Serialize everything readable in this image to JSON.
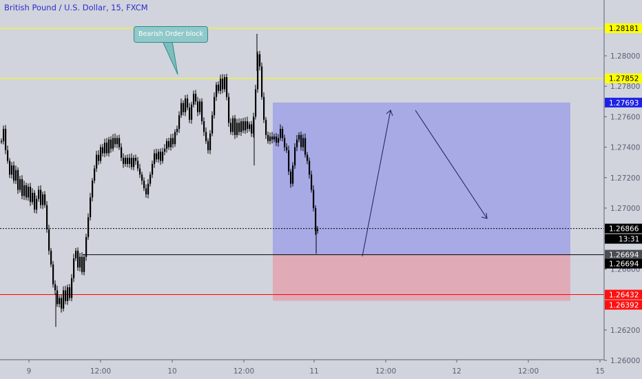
{
  "title": "British Pound / U.S. Dollar, 15, FXCM",
  "annotation": "Bearish Order block",
  "colors": {
    "background": "#d1d4dc",
    "candle": "#000000",
    "horizontal_line": "#ffff00",
    "support_line": "#ff0000",
    "profit_zone": "#a4a8e4",
    "loss_zone": "#e0a8b4",
    "price_line": "#000000",
    "axis_text": "#5a5f73"
  },
  "chart_data": {
    "type": "line",
    "title": "British Pound / U.S. Dollar, 15, FXCM",
    "xlabel": "",
    "ylabel": "",
    "x_ticks": [
      "9",
      "12:00",
      "10",
      "12:00",
      "11",
      "12:00",
      "12",
      "12:00",
      "15"
    ],
    "y_ticks": [
      "1.26000",
      "1.26200",
      "1.26600",
      "1.26800",
      "1.27000",
      "1.27200",
      "1.27400",
      "1.27600",
      "1.27800",
      "1.28000"
    ],
    "ylim": [
      1.2597,
      1.2835
    ],
    "series": [
      {
        "points": [
          [
            0,
            1.2744
          ],
          [
            3,
            1.2752
          ],
          [
            6,
            1.2738
          ],
          [
            9,
            1.2731
          ],
          [
            12,
            1.2722
          ],
          [
            15,
            1.2728
          ],
          [
            18,
            1.2718
          ],
          [
            21,
            1.2725
          ],
          [
            24,
            1.2712
          ],
          [
            27,
            1.2719
          ],
          [
            30,
            1.2708
          ],
          [
            33,
            1.2715
          ],
          [
            36,
            1.2707
          ],
          [
            39,
            1.2714
          ],
          [
            42,
            1.2704
          ],
          [
            45,
            1.271
          ],
          [
            48,
            1.2699
          ],
          [
            51,
            1.2706
          ],
          [
            54,
            1.2712
          ],
          [
            57,
            1.2702
          ],
          [
            60,
            1.2709
          ],
          [
            63,
            1.2702
          ],
          [
            66,
            1.2686
          ],
          [
            69,
            1.2672
          ],
          [
            72,
            1.2663
          ],
          [
            75,
            1.265
          ],
          [
            78,
            1.2646
          ],
          [
            81,
            1.2637
          ],
          [
            84,
            1.2641
          ],
          [
            87,
            1.2634
          ],
          [
            90,
            1.2646
          ],
          [
            93,
            1.2639
          ],
          [
            96,
            1.2648
          ],
          [
            99,
            1.2641
          ],
          [
            102,
            1.2654
          ],
          [
            105,
            1.2667
          ],
          [
            108,
            1.2672
          ],
          [
            111,
            1.2661
          ],
          [
            114,
            1.2668
          ],
          [
            117,
            1.2658
          ],
          [
            120,
            1.2668
          ],
          [
            123,
            1.2681
          ],
          [
            126,
            1.2694
          ],
          [
            129,
            1.2707
          ],
          [
            132,
            1.2718
          ],
          [
            135,
            1.2726
          ],
          [
            138,
            1.2735
          ],
          [
            141,
            1.2731
          ],
          [
            144,
            1.274
          ],
          [
            147,
            1.2736
          ],
          [
            150,
            1.2743
          ],
          [
            153,
            1.2736
          ],
          [
            156,
            1.2745
          ],
          [
            159,
            1.2739
          ],
          [
            162,
            1.2746
          ],
          [
            165,
            1.2742
          ],
          [
            168,
            1.2746
          ],
          [
            171,
            1.274
          ],
          [
            174,
            1.2733
          ],
          [
            177,
            1.2729
          ],
          [
            180,
            1.2733
          ],
          [
            183,
            1.2729
          ],
          [
            186,
            1.2733
          ],
          [
            189,
            1.2727
          ],
          [
            192,
            1.2733
          ],
          [
            195,
            1.2731
          ],
          [
            198,
            1.2726
          ],
          [
            201,
            1.2722
          ],
          [
            204,
            1.2718
          ],
          [
            207,
            1.2713
          ],
          [
            210,
            1.2709
          ],
          [
            213,
            1.2716
          ],
          [
            216,
            1.2722
          ],
          [
            219,
            1.2729
          ],
          [
            222,
            1.2736
          ],
          [
            225,
            1.2732
          ],
          [
            228,
            1.2737
          ],
          [
            231,
            1.2731
          ],
          [
            234,
            1.2737
          ],
          [
            237,
            1.2739
          ],
          [
            240,
            1.2744
          ],
          [
            243,
            1.274
          ],
          [
            246,
            1.2746
          ],
          [
            249,
            1.2742
          ],
          [
            252,
            1.275
          ],
          [
            255,
            1.2752
          ],
          [
            258,
            1.2761
          ],
          [
            261,
            1.2769
          ],
          [
            264,
            1.2763
          ],
          [
            267,
            1.2772
          ],
          [
            270,
            1.2766
          ],
          [
            273,
            1.2758
          ],
          [
            276,
            1.2768
          ],
          [
            279,
            1.2775
          ],
          [
            282,
            1.277
          ],
          [
            285,
            1.2763
          ],
          [
            288,
            1.277
          ],
          [
            291,
            1.2757
          ],
          [
            294,
            1.275
          ],
          [
            297,
            1.2744
          ],
          [
            300,
            1.2738
          ],
          [
            303,
            1.2749
          ],
          [
            306,
            1.2761
          ],
          [
            309,
            1.2773
          ],
          [
            312,
            1.2781
          ],
          [
            315,
            1.2777
          ],
          [
            318,
            1.2785
          ],
          [
            321,
            1.2778
          ],
          [
            324,
            1.2786
          ],
          [
            327,
            1.2773
          ],
          [
            330,
            1.2756
          ],
          [
            333,
            1.275
          ],
          [
            336,
            1.2759
          ],
          [
            339,
            1.2748
          ],
          [
            342,
            1.2756
          ],
          [
            345,
            1.275
          ],
          [
            348,
            1.2757
          ],
          [
            351,
            1.2751
          ],
          [
            354,
            1.2757
          ],
          [
            357,
            1.2752
          ],
          [
            360,
            1.2755
          ],
          [
            363,
            1.2749
          ],
          [
            366,
            1.276
          ],
          [
            369,
            1.2778
          ],
          [
            372,
            1.2801
          ],
          [
            375,
            1.2793
          ],
          [
            378,
            1.2773
          ],
          [
            381,
            1.2758
          ],
          [
            384,
            1.2748
          ],
          [
            387,
            1.2744
          ],
          [
            390,
            1.2747
          ],
          [
            393,
            1.2745
          ],
          [
            396,
            1.2747
          ],
          [
            399,
            1.2743
          ],
          [
            402,
            1.2746
          ],
          [
            405,
            1.2752
          ],
          [
            408,
            1.2746
          ],
          [
            411,
            1.274
          ],
          [
            414,
            1.2738
          ],
          [
            417,
            1.2724
          ],
          [
            420,
            1.2716
          ],
          [
            423,
            1.2728
          ],
          [
            426,
            1.274
          ],
          [
            429,
            1.2745
          ],
          [
            432,
            1.2748
          ],
          [
            435,
            1.274
          ],
          [
            438,
            1.2746
          ],
          [
            441,
            1.2735
          ],
          [
            444,
            1.2731
          ],
          [
            447,
            1.2722
          ],
          [
            450,
            1.2712
          ],
          [
            453,
            1.27
          ],
          [
            456,
            1.2685
          ],
          [
            459,
            1.2686
          ]
        ]
      }
    ],
    "annotations": [
      {
        "label": "1.28181",
        "value": 1.28181,
        "kind": "horizontal_line"
      },
      {
        "label": "1.27852",
        "value": 1.27852,
        "kind": "horizontal_line"
      },
      {
        "label": "1.27693",
        "value": 1.27693,
        "kind": "zone_top"
      },
      {
        "label": "1.26866",
        "value": 1.26866,
        "kind": "last_price"
      },
      {
        "label": "13:31",
        "kind": "countdown"
      },
      {
        "label": "1.26694",
        "value": 1.26694,
        "kind": "entry_line"
      },
      {
        "label": "1.26694",
        "value": 1.26694,
        "kind": "entry_marker"
      },
      {
        "label": "1.26432",
        "value": 1.26432,
        "kind": "support_line"
      },
      {
        "label": "1.26392",
        "value": 1.26392,
        "kind": "zone_bottom"
      }
    ],
    "grid": false,
    "legend": "none"
  }
}
